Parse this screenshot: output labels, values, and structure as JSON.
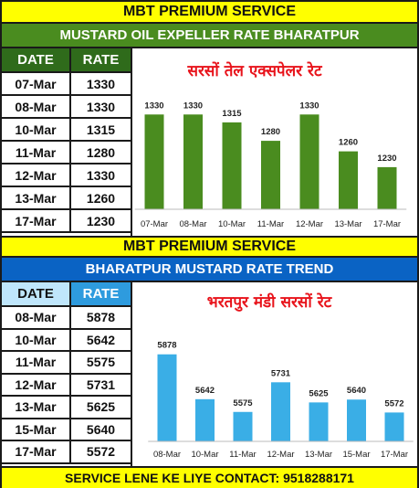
{
  "header1": "MBT PREMIUM SERVICE",
  "subheader1": "MUSTARD OIL EXPELLER RATE BHARATPUR",
  "table1": {
    "col_date": "DATE",
    "col_rate": "RATE",
    "rows": [
      {
        "date": "07-Mar",
        "rate": "1330"
      },
      {
        "date": "08-Mar",
        "rate": "1330"
      },
      {
        "date": "10-Mar",
        "rate": "1315"
      },
      {
        "date": "11-Mar",
        "rate": "1280"
      },
      {
        "date": "12-Mar",
        "rate": "1330"
      },
      {
        "date": "13-Mar",
        "rate": "1260"
      },
      {
        "date": "17-Mar",
        "rate": "1230"
      }
    ]
  },
  "header2": "MBT PREMIUM SERVICE",
  "subheader2": "BHARATPUR MUSTARD RATE TREND",
  "table2": {
    "col_date": "DATE",
    "col_rate": "RATE",
    "rows": [
      {
        "date": "08-Mar",
        "rate": "5878"
      },
      {
        "date": "10-Mar",
        "rate": "5642"
      },
      {
        "date": "11-Mar",
        "rate": "5575"
      },
      {
        "date": "12-Mar",
        "rate": "5731"
      },
      {
        "date": "13-Mar",
        "rate": "5625"
      },
      {
        "date": "15-Mar",
        "rate": "5640"
      },
      {
        "date": "17-Mar",
        "rate": "5572"
      }
    ]
  },
  "footer": "SERVICE LENE KE LIYE CONTACT: 9518288171",
  "colors": {
    "green_bar": "#4a8c1f",
    "blue_bar": "#3aaee6",
    "yellow": "#ffff00",
    "title_red": "#e8131b"
  },
  "chart_data": [
    {
      "type": "bar",
      "title": "सरसों तेल एक्सपेलर रेट",
      "categories": [
        "07-Mar",
        "08-Mar",
        "10-Mar",
        "11-Mar",
        "12-Mar",
        "13-Mar",
        "17-Mar"
      ],
      "values": [
        1330,
        1330,
        1315,
        1280,
        1330,
        1260,
        1230
      ],
      "ylim": [
        1150,
        1360
      ],
      "grid": false
    },
    {
      "type": "bar",
      "title": "भरतपुर मंडी सरसों रेट",
      "categories": [
        "08-Mar",
        "10-Mar",
        "11-Mar",
        "12-Mar",
        "13-Mar",
        "15-Mar",
        "17-Mar"
      ],
      "values": [
        5878,
        5642,
        5575,
        5731,
        5625,
        5640,
        5572
      ],
      "ylim": [
        5420,
        5920
      ],
      "grid": false
    }
  ]
}
